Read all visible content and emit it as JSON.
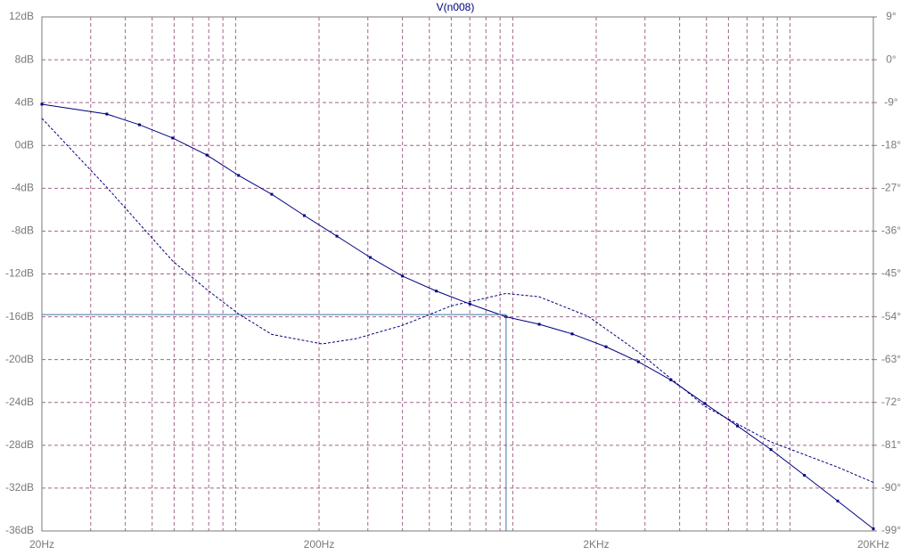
{
  "chart_data": {
    "type": "line",
    "title": "V(n008)",
    "xlim": [
      20,
      20000
    ],
    "xlog": true,
    "xticks": [
      {
        "value": 20,
        "label": "20Hz"
      },
      {
        "value": 200,
        "label": "200Hz"
      },
      {
        "value": 2000,
        "label": "2KHz"
      },
      {
        "value": 20000,
        "label": "20KHz"
      }
    ],
    "x_minor_ticks": [
      30,
      40,
      50,
      60,
      70,
      80,
      90,
      100,
      300,
      400,
      500,
      600,
      700,
      800,
      900,
      1000,
      3000,
      4000,
      5000,
      6000,
      7000,
      8000,
      9000,
      10000
    ],
    "ylim": [
      -36,
      12
    ],
    "yticks": [
      {
        "value": -36,
        "label": "-36dB"
      },
      {
        "value": -32,
        "label": "-32dB"
      },
      {
        "value": -28,
        "label": "-28dB"
      },
      {
        "value": -24,
        "label": "-24dB"
      },
      {
        "value": -20,
        "label": "-20dB"
      },
      {
        "value": -16,
        "label": "-16dB"
      },
      {
        "value": -12,
        "label": "-12dB"
      },
      {
        "value": -8,
        "label": "-8dB"
      },
      {
        "value": -4,
        "label": "-4dB"
      },
      {
        "value": 0,
        "label": "0dB"
      },
      {
        "value": 4,
        "label": "4dB"
      },
      {
        "value": 8,
        "label": "8dB"
      },
      {
        "value": 12,
        "label": "12dB"
      }
    ],
    "y2lim": [
      -99,
      9
    ],
    "y2ticks": [
      {
        "value": -99,
        "label": "-99°"
      },
      {
        "value": -90,
        "label": "-90°"
      },
      {
        "value": -81,
        "label": "-81°"
      },
      {
        "value": -72,
        "label": "-72°"
      },
      {
        "value": -63,
        "label": "-63°"
      },
      {
        "value": -54,
        "label": "-54°"
      },
      {
        "value": -45,
        "label": "-45°"
      },
      {
        "value": -36,
        "label": "-36°"
      },
      {
        "value": -27,
        "label": "-27°"
      },
      {
        "value": -18,
        "label": "-18°"
      },
      {
        "value": -9,
        "label": "-9°"
      },
      {
        "value": 0,
        "label": "0°"
      },
      {
        "value": 9,
        "label": "9°"
      }
    ],
    "grid": true,
    "series": [
      {
        "name": "V(n008)",
        "color": "#000080",
        "dash": false,
        "markers": true,
        "x": [
          20,
          34.3,
          45,
          59.3,
          78.8,
          102.5,
          135,
          177,
          232,
          306,
          400,
          530,
          700,
          946,
          1246,
          1638,
          2170,
          2840,
          3720,
          4930,
          6470,
          8540,
          11280,
          14870,
          20000
        ],
        "values": [
          3.85,
          2.93,
          1.93,
          0.69,
          -0.9,
          -2.8,
          -4.56,
          -6.55,
          -8.47,
          -10.46,
          -12.2,
          -13.6,
          -14.8,
          -16,
          -16.7,
          -17.6,
          -18.8,
          -20.2,
          -21.9,
          -24.1,
          -26.2,
          -28.4,
          -30.8,
          -33.2,
          -35.8
        ]
      },
      {
        "name": "V(n008)",
        "color": "#000080",
        "dash": true,
        "markers": false,
        "axis": "y2",
        "x": [
          20,
          34.3,
          59.3,
          78.8,
          102.5,
          135,
          205,
          272,
          400,
          600,
          946,
          1246,
          1870,
          2840,
          4930,
          8540,
          14870,
          20000
        ],
        "values": [
          -12.3,
          -26.8,
          -42.3,
          -48.3,
          -53.4,
          -57.7,
          -59.7,
          -58.6,
          -55.8,
          -51.7,
          -49.1,
          -49.8,
          -53.9,
          -61.4,
          -72.8,
          -80.3,
          -85.6,
          -88.8
        ]
      }
    ],
    "cursor": {
      "x": 946,
      "y": -15.8,
      "color": "#3a78a8"
    }
  }
}
